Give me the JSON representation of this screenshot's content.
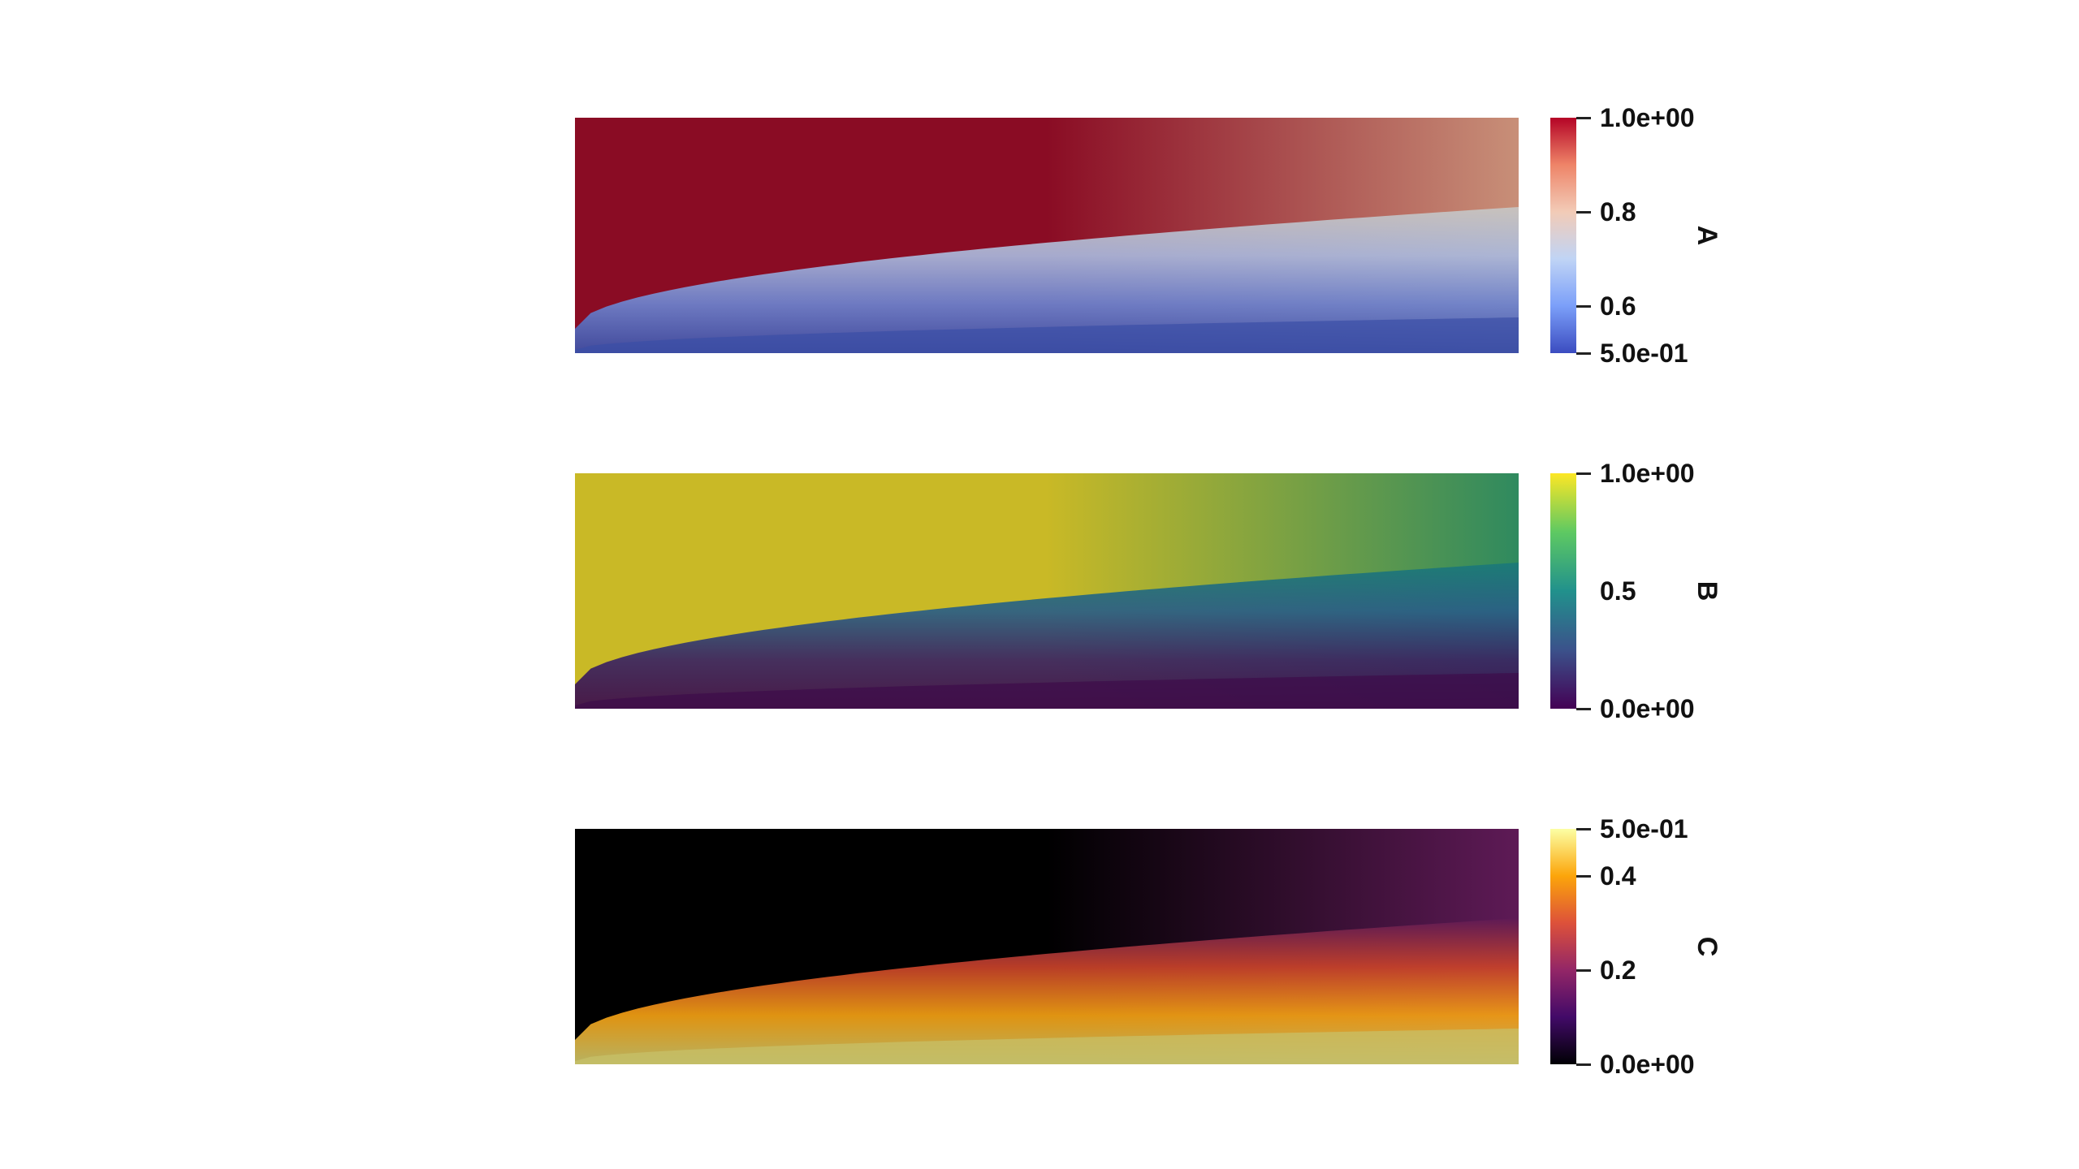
{
  "chart_data": [
    {
      "type": "heatmap",
      "field": "A",
      "colormap": "coolwarm",
      "colorbar": {
        "title": "A",
        "range": [
          0.5,
          1.0
        ],
        "ticks": [
          {
            "value": 1.0,
            "label": "1.0e+00"
          },
          {
            "value": 0.8,
            "label": "0.8"
          },
          {
            "value": 0.6,
            "label": "0.6"
          },
          {
            "value": 0.5,
            "label": "5.0e-01"
          }
        ],
        "colors": [
          "#3b4cc0",
          "#7b9ff9",
          "#c0d4f5",
          "#f2cbb7",
          "#ee8468",
          "#b40426"
        ]
      },
      "plot_colors": {
        "top_left": "#8a0c24",
        "top_right": "#c88f78",
        "mid_right": "#c8c6c2",
        "bottom": "#3b4fa6"
      }
    },
    {
      "type": "heatmap",
      "field": "B",
      "colormap": "viridis",
      "colorbar": {
        "title": "B",
        "range": [
          0.0,
          1.0
        ],
        "ticks": [
          {
            "value": 1.0,
            "label": "1.0e+00"
          },
          {
            "value": 0.5,
            "label": "0.5"
          },
          {
            "value": 0.0,
            "label": "0.0e+00"
          }
        ],
        "colors": [
          "#440154",
          "#3b528b",
          "#21918c",
          "#5ec962",
          "#fde725"
        ]
      },
      "plot_colors": {
        "top_left": "#c9b926",
        "top_right": "#2f8a5f",
        "mid_right": "#1a7a78",
        "bottom": "#3d0b4a"
      }
    },
    {
      "type": "heatmap",
      "field": "C",
      "colormap": "inferno",
      "colorbar": {
        "title": "C",
        "range": [
          0.0,
          0.5
        ],
        "ticks": [
          {
            "value": 0.5,
            "label": "5.0e-01"
          },
          {
            "value": 0.4,
            "label": "0.4"
          },
          {
            "value": 0.2,
            "label": "0.2"
          },
          {
            "value": 0.0,
            "label": "0.0e+00"
          }
        ],
        "colors": [
          "#000004",
          "#420a68",
          "#932667",
          "#dd513a",
          "#fca50a",
          "#fcffa4"
        ]
      },
      "plot_colors": {
        "top_left": "#000000",
        "top_right": "#5e1a56",
        "mid_right": "#c8422a",
        "bottom": "#c7c26a"
      }
    }
  ]
}
